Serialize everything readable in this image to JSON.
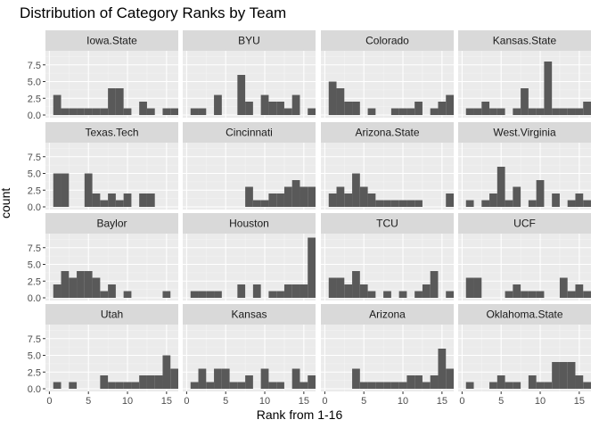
{
  "chart_data": {
    "type": "bar",
    "title": "Distribution of Category Ranks by Team",
    "xlabel": "Rank from 1-16",
    "ylabel": "count",
    "xlim": [
      -0.5,
      16.5
    ],
    "ylim": [
      -0.4,
      9.6
    ],
    "x_ticks": [
      0,
      5,
      10,
      15
    ],
    "y_ticks": [
      0.0,
      2.5,
      5.0,
      7.5
    ],
    "y_tick_labels": [
      "0.0",
      "2.5",
      "5.0",
      "7.5"
    ],
    "ranks": [
      1,
      2,
      3,
      4,
      5,
      6,
      7,
      8,
      9,
      10,
      11,
      12,
      13,
      14,
      15,
      16
    ],
    "grid": true,
    "bar_color": "#595959",
    "panel_background": "#ebebeb",
    "strip_background": "#d9d9d9",
    "facets": [
      {
        "team": "Iowa.State",
        "counts": [
          3,
          1,
          1,
          1,
          1,
          1,
          1,
          4,
          4,
          1,
          0,
          2,
          1,
          0,
          1,
          1
        ]
      },
      {
        "team": "BYU",
        "counts": [
          1,
          1,
          0,
          3,
          0,
          0,
          6,
          2,
          0,
          3,
          2,
          2,
          1,
          3,
          0,
          1
        ]
      },
      {
        "team": "Colorado",
        "counts": [
          5,
          4,
          2,
          2,
          0,
          1,
          0,
          0,
          1,
          1,
          1,
          2,
          0,
          1,
          2,
          3
        ]
      },
      {
        "team": "Kansas.State",
        "counts": [
          1,
          1,
          2,
          1,
          1,
          0,
          1,
          4,
          1,
          1,
          8,
          1,
          1,
          1,
          1,
          2
        ]
      },
      {
        "team": "Texas.Tech",
        "counts": [
          5,
          5,
          0,
          0,
          5,
          2,
          1,
          2,
          1,
          2,
          0,
          2,
          2,
          0,
          0,
          0
        ]
      },
      {
        "team": "Cincinnati",
        "counts": [
          0,
          0,
          0,
          0,
          0,
          0,
          0,
          3,
          1,
          1,
          2,
          2,
          3,
          4,
          3,
          3
        ]
      },
      {
        "team": "Arizona.State",
        "counts": [
          2,
          3,
          2,
          5,
          3,
          2,
          1,
          1,
          1,
          1,
          1,
          1,
          0,
          0,
          0,
          2
        ]
      },
      {
        "team": "West.Virginia",
        "counts": [
          1,
          0,
          1,
          2,
          6,
          1,
          3,
          0,
          1,
          4,
          0,
          2,
          0,
          1,
          2,
          1
        ]
      },
      {
        "team": "Baylor",
        "counts": [
          2,
          4,
          3,
          4,
          4,
          3,
          1,
          2,
          0,
          1,
          0,
          0,
          0,
          0,
          1,
          0
        ]
      },
      {
        "team": "Houston",
        "counts": [
          1,
          1,
          1,
          1,
          0,
          0,
          2,
          0,
          2,
          0,
          1,
          1,
          2,
          2,
          2,
          9
        ]
      },
      {
        "team": "TCU",
        "counts": [
          3,
          3,
          2,
          4,
          2,
          1,
          0,
          1,
          0,
          1,
          0,
          1,
          2,
          4,
          0,
          1
        ]
      },
      {
        "team": "UCF",
        "counts": [
          3,
          3,
          0,
          0,
          0,
          1,
          2,
          1,
          1,
          1,
          0,
          0,
          3,
          1,
          2,
          1
        ]
      },
      {
        "team": "Utah",
        "counts": [
          1,
          0,
          1,
          0,
          0,
          0,
          2,
          1,
          1,
          1,
          1,
          2,
          2,
          2,
          5,
          3
        ]
      },
      {
        "team": "Kansas",
        "counts": [
          1,
          3,
          1,
          3,
          3,
          1,
          1,
          2,
          0,
          3,
          1,
          1,
          0,
          3,
          1,
          2
        ]
      },
      {
        "team": "Arizona",
        "counts": [
          0,
          0,
          0,
          3,
          1,
          1,
          1,
          1,
          1,
          1,
          2,
          2,
          1,
          2,
          6,
          3
        ]
      },
      {
        "team": "Oklahoma.State",
        "counts": [
          1,
          0,
          0,
          1,
          2,
          1,
          1,
          0,
          2,
          1,
          1,
          4,
          4,
          4,
          2,
          1
        ]
      }
    ]
  }
}
